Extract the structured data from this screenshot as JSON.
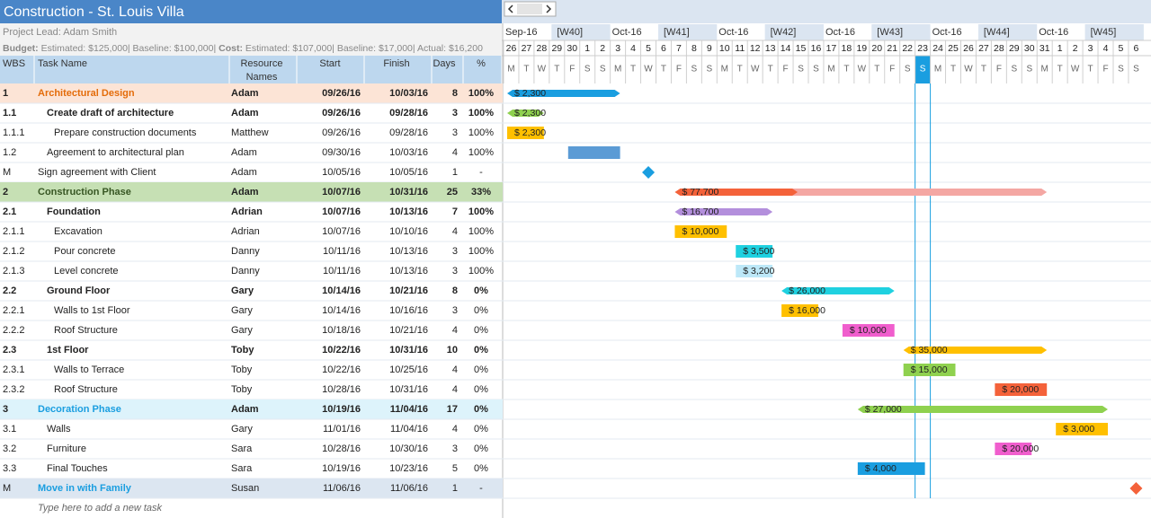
{
  "header": {
    "title": "Construction - St. Louis Villa",
    "project_lead": "Project Lead: Adam Smith",
    "budget_label": "Budget:",
    "budget_text": " Estimated: $125,000| Baseline: $100,000| ",
    "cost_label": "Cost:",
    "cost_text": " Estimated: $107,000| Baseline: $17,000| Actual: $16,200"
  },
  "columns": [
    "WBS",
    "Task Name",
    "Resource Names",
    "Start",
    "Finish",
    "Days",
    "%"
  ],
  "timeline": {
    "weeks": [
      {
        "month": "Sep-16",
        "week": "[W40]"
      },
      {
        "month": "Oct-16",
        "week": "[W41]"
      },
      {
        "month": "Oct-16",
        "week": "[W42]"
      },
      {
        "month": "Oct-16",
        "week": "[W43]"
      },
      {
        "month": "Oct-16",
        "week": "[W44]"
      },
      {
        "month": "Oct-16",
        "week": "[W45]"
      }
    ],
    "days": [
      "26",
      "27",
      "28",
      "29",
      "30",
      "1",
      "2",
      "3",
      "4",
      "5",
      "6",
      "7",
      "8",
      "9",
      "10",
      "11",
      "12",
      "13",
      "14",
      "15",
      "16",
      "17",
      "18",
      "19",
      "20",
      "21",
      "22",
      "23",
      "24",
      "25",
      "26",
      "27",
      "28",
      "29",
      "30",
      "31",
      "1",
      "2",
      "3",
      "4",
      "5",
      "6"
    ],
    "weekdays": [
      "M",
      "T",
      "W",
      "T",
      "F",
      "S",
      "S"
    ]
  },
  "tasks": [
    {
      "wbs": "1",
      "name": "Architectural Design",
      "resource": "Adam",
      "start": "09/26/16",
      "finish": "10/03/16",
      "days": 8,
      "pct": "100%",
      "cost": "$ 2,300",
      "level": 0,
      "kind": "summary",
      "color": "#1a9ee0",
      "bg": "#fce4d6",
      "name_color": "#e46c0a"
    },
    {
      "wbs": "1.1",
      "name": "Create draft of architecture",
      "resource": "Adam",
      "start": "09/26/16",
      "finish": "09/28/16",
      "days": 3,
      "pct": "100%",
      "cost": "$ 2,300",
      "level": 1,
      "kind": "summary",
      "color": "#8fd14f"
    },
    {
      "wbs": "1.1.1",
      "name": "Prepare construction documents",
      "resource": "Matthew",
      "start": "09/26/16",
      "finish": "09/28/16",
      "days": 3,
      "pct": "100%",
      "cost": "$ 2,300",
      "level": 2,
      "kind": "task",
      "color": "#ffc000"
    },
    {
      "wbs": "1.2",
      "name": "Agreement to architectural plan",
      "resource": "Adam",
      "start": "09/30/16",
      "finish": "10/03/16",
      "days": 4,
      "pct": "100%",
      "level": 1,
      "kind": "task",
      "color": "#5b9bd5"
    },
    {
      "wbs": "M",
      "name": "Sign agreement with Client",
      "resource": "Adam",
      "start": "10/05/16",
      "finish": "10/05/16",
      "days": 1,
      "pct": "-",
      "level": 0,
      "kind": "milestone",
      "color": "#1a9ee0"
    },
    {
      "wbs": "2",
      "name": "Construction Phase",
      "resource": "Adam",
      "start": "10/07/16",
      "finish": "10/31/16",
      "days": 25,
      "pct": "33%",
      "cost": "$ 77,700",
      "level": 0,
      "kind": "summary",
      "color": "#f4623a",
      "rest_color": "#f4a7a3",
      "bg": "#c6e0b4",
      "name_color": "#375623"
    },
    {
      "wbs": "2.1",
      "name": "Foundation",
      "resource": "Adrian",
      "start": "10/07/16",
      "finish": "10/13/16",
      "days": 7,
      "pct": "100%",
      "cost": "$ 16,700",
      "level": 1,
      "kind": "summary",
      "color": "#b38fdc"
    },
    {
      "wbs": "2.1.1",
      "name": "Excavation",
      "resource": "Adrian",
      "start": "10/07/16",
      "finish": "10/10/16",
      "days": 4,
      "pct": "100%",
      "cost": "$ 10,000",
      "level": 2,
      "kind": "task",
      "color": "#ffc000"
    },
    {
      "wbs": "2.1.2",
      "name": "Pour concrete",
      "resource": "Danny",
      "start": "10/11/16",
      "finish": "10/13/16",
      "days": 3,
      "pct": "100%",
      "cost": "$ 3,500",
      "level": 2,
      "kind": "task",
      "color": "#1fd1e0"
    },
    {
      "wbs": "2.1.3",
      "name": "Level concrete",
      "resource": "Danny",
      "start": "10/11/16",
      "finish": "10/13/16",
      "days": 3,
      "pct": "100%",
      "cost": "$ 3,200",
      "level": 2,
      "kind": "task",
      "color": "#bde8f8"
    },
    {
      "wbs": "2.2",
      "name": "Ground Floor",
      "resource": "Gary",
      "start": "10/14/16",
      "finish": "10/21/16",
      "days": 8,
      "pct": "0%",
      "cost": "$ 26,000",
      "level": 1,
      "kind": "summary",
      "color": "#1fd1e0"
    },
    {
      "wbs": "2.2.1",
      "name": "Walls to 1st Floor",
      "resource": "Gary",
      "start": "10/14/16",
      "finish": "10/16/16",
      "days": 3,
      "pct": "0%",
      "cost": "$ 16,000",
      "level": 2,
      "kind": "task",
      "color": "#ffc000"
    },
    {
      "wbs": "2.2.2",
      "name": "Roof Structure",
      "resource": "Gary",
      "start": "10/18/16",
      "finish": "10/21/16",
      "days": 4,
      "pct": "0%",
      "cost": "$ 10,000",
      "level": 2,
      "kind": "task",
      "color": "#f05ecd"
    },
    {
      "wbs": "2.3",
      "name": "1st Floor",
      "resource": "Toby",
      "start": "10/22/16",
      "finish": "10/31/16",
      "days": 10,
      "pct": "0%",
      "cost": "$ 35,000",
      "level": 1,
      "kind": "summary",
      "color": "#ffc000"
    },
    {
      "wbs": "2.3.1",
      "name": "Walls to Terrace",
      "resource": "Toby",
      "start": "10/22/16",
      "finish": "10/25/16",
      "days": 4,
      "pct": "0%",
      "cost": "$ 15,000",
      "level": 2,
      "kind": "task",
      "color": "#8fd14f"
    },
    {
      "wbs": "2.3.2",
      "name": "Roof Structure",
      "resource": "Toby",
      "start": "10/28/16",
      "finish": "10/31/16",
      "days": 4,
      "pct": "0%",
      "cost": "$ 20,000",
      "level": 2,
      "kind": "task",
      "color": "#f4623a"
    },
    {
      "wbs": "3",
      "name": "Decoration Phase",
      "resource": "Adam",
      "start": "10/19/16",
      "finish": "11/04/16",
      "days": 17,
      "pct": "0%",
      "cost": "$ 27,000",
      "level": 0,
      "kind": "summary",
      "color": "#8fd14f",
      "bg": "#ddf3fb",
      "name_color": "#1a9ee0"
    },
    {
      "wbs": "3.1",
      "name": "Walls",
      "resource": "Gary",
      "start": "11/01/16",
      "finish": "11/04/16",
      "days": 4,
      "pct": "0%",
      "cost": "$ 3,000",
      "level": 1,
      "kind": "task",
      "color": "#ffc000"
    },
    {
      "wbs": "3.2",
      "name": "Furniture",
      "resource": "Sara",
      "start": "10/28/16",
      "finish": "10/30/16",
      "days": 3,
      "pct": "0%",
      "cost": "$ 20,000",
      "level": 1,
      "kind": "task",
      "color": "#f05ecd"
    },
    {
      "wbs": "3.3",
      "name": "Final Touches",
      "resource": "Sara",
      "start": "10/19/16",
      "finish": "10/23/16",
      "days": 5,
      "pct": "0%",
      "cost": "$ 4,000",
      "level": 1,
      "kind": "task",
      "color": "#1a9ee0"
    },
    {
      "wbs": "M",
      "name": "Move in with Family",
      "resource": "Susan",
      "start": "11/06/16",
      "finish": "11/06/16",
      "days": 1,
      "pct": "-",
      "level": 0,
      "kind": "milestone",
      "color": "#f4623a",
      "bg": "#dce6f1",
      "name_color": "#1a9ee0"
    }
  ],
  "new_task_hint": "Type here to add a new task"
}
